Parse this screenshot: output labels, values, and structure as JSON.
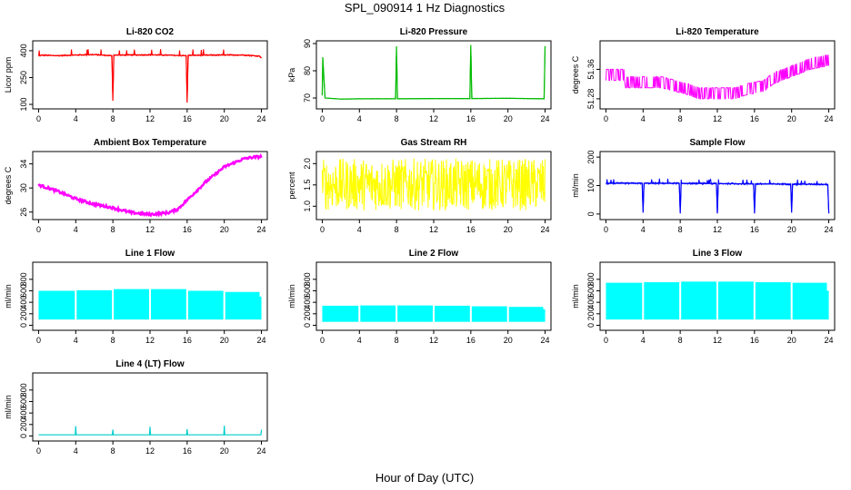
{
  "figure": {
    "title": "SPL_090914  1 Hz Diagnostics",
    "xlabel": "Hour of Day (UTC)"
  },
  "chart_data": [
    {
      "type": "line",
      "title": "Li-820 CO2",
      "ylabel": "Licor ppm",
      "color": "#ff0000",
      "xlim": [
        0,
        24
      ],
      "ylim": [
        90,
        440
      ],
      "x_ticks": [
        0,
        4,
        8,
        12,
        16,
        20,
        24
      ],
      "y_ticks": [
        100,
        250,
        400
      ],
      "series": [
        {
          "x": [
            0,
            0.3,
            2,
            4,
            6,
            7.9,
            8,
            8.1,
            10,
            12,
            14,
            15.9,
            16,
            16.1,
            18,
            20,
            22,
            23.8,
            24
          ],
          "y": [
            370,
            375,
            372,
            376,
            378,
            372,
            120,
            375,
            376,
            377,
            375,
            372,
            110,
            374,
            375,
            376,
            376,
            370,
            360
          ]
        }
      ]
    },
    {
      "type": "line",
      "title": "Li-820 Pressure",
      "ylabel": "kPa",
      "color": "#00bb00",
      "xlim": [
        0,
        24
      ],
      "ylim": [
        67,
        90
      ],
      "x_ticks": [
        0,
        4,
        8,
        12,
        16,
        20,
        24
      ],
      "y_ticks": [
        70,
        80,
        90
      ],
      "series": [
        {
          "x": [
            0,
            0.05,
            0.3,
            2,
            4,
            7.9,
            8,
            8.1,
            12,
            15.9,
            16,
            16.1,
            20,
            23.9,
            24
          ],
          "y": [
            71,
            85,
            70,
            69.6,
            69.7,
            69.7,
            89,
            69.7,
            69.8,
            69.8,
            89.5,
            69.8,
            69.9,
            69.7,
            89
          ]
        }
      ]
    },
    {
      "type": "line",
      "title": "Li-820 Temperature",
      "ylabel": "degrees C",
      "color": "#ff00ff",
      "xlim": [
        0,
        24
      ],
      "ylim": [
        51.26,
        51.43
      ],
      "x_ticks": [
        0,
        4,
        8,
        12,
        16,
        20,
        24
      ],
      "y_ticks": [
        51.28,
        51.36
      ],
      "series": [
        {
          "x": [
            0,
            2,
            2.1,
            6,
            9,
            10,
            12,
            14,
            15,
            17,
            18,
            20,
            22,
            24
          ],
          "y": [
            51.34,
            51.34,
            51.32,
            51.32,
            51.3,
            51.29,
            51.29,
            51.29,
            51.3,
            51.31,
            51.33,
            51.35,
            51.37,
            51.38
          ]
        }
      ]
    },
    {
      "type": "line",
      "title": "Ambient Box Temperature",
      "ylabel": "degrees C",
      "color": "#ff00ff",
      "xlim": [
        0,
        24
      ],
      "ylim": [
        25.2,
        35.6
      ],
      "x_ticks": [
        0,
        4,
        8,
        12,
        16,
        20,
        24
      ],
      "y_ticks": [
        26,
        30,
        34
      ],
      "series": [
        {
          "x": [
            0,
            2,
            4,
            6,
            8,
            10,
            12,
            14,
            15,
            16,
            18,
            20,
            22,
            23,
            24
          ],
          "y": [
            30.5,
            29.5,
            28.2,
            27.3,
            26.7,
            25.9,
            25.6,
            25.9,
            26.5,
            28.0,
            31.0,
            33.5,
            34.8,
            35.1,
            35.2
          ]
        }
      ]
    },
    {
      "type": "line",
      "title": "Gas Stream RH",
      "ylabel": "percent",
      "color": "#ffff00",
      "xlim": [
        0,
        24
      ],
      "ylim": [
        0.75,
        2.22
      ],
      "x_ticks": [
        0,
        4,
        8,
        12,
        16,
        20,
        24
      ],
      "y_ticks": [
        1.0,
        1.5,
        2.0
      ],
      "y_tick_labels": [
        "1.0",
        "1.5",
        "2.0"
      ],
      "series": [
        {
          "x": [
            0,
            24
          ],
          "y": [
            0.9,
            2.15
          ]
        }
      ]
    },
    {
      "type": "line",
      "title": "Sample Flow",
      "ylabel": "ml/min",
      "color": "#0000ff",
      "xlim": [
        0,
        24
      ],
      "ylim": [
        -10,
        210
      ],
      "x_ticks": [
        0,
        4,
        8,
        12,
        16,
        20,
        24
      ],
      "y_ticks": [
        0,
        100,
        200
      ],
      "series": [
        {
          "x": [
            0,
            3.9,
            4,
            4.1,
            7.9,
            8,
            8.1,
            11.9,
            12,
            12.1,
            15.9,
            16,
            16.1,
            19.9,
            20,
            20.1,
            23.9,
            24
          ],
          "y": [
            108,
            108,
            5,
            108,
            108,
            2,
            108,
            107,
            2,
            107,
            106,
            2,
            106,
            105,
            5,
            105,
            104,
            2
          ]
        }
      ]
    },
    {
      "type": "area",
      "title": "Line 1 Flow",
      "ylabel": "ml/min",
      "color": "#00ffff",
      "xlim": [
        0,
        24
      ],
      "ylim": [
        -40,
        1050
      ],
      "x_ticks": [
        0,
        4,
        8,
        12,
        16,
        20,
        24
      ],
      "y_ticks": [
        0,
        200,
        400,
        600,
        800
      ],
      "band_low": 100,
      "segments": [
        [
          0,
          3.9,
          600
        ],
        [
          4.1,
          7.9,
          610
        ],
        [
          8.1,
          11.9,
          630
        ],
        [
          12.1,
          15.9,
          630
        ],
        [
          16.1,
          19.9,
          600
        ],
        [
          20.1,
          23.8,
          580
        ]
      ],
      "tail": [
        23.8,
        24,
        500
      ]
    },
    {
      "type": "area",
      "title": "Line 2 Flow",
      "ylabel": "ml/min",
      "color": "#00ffff",
      "xlim": [
        0,
        24
      ],
      "ylim": [
        -40,
        1050
      ],
      "x_ticks": [
        0,
        4,
        8,
        12,
        16,
        20,
        24
      ],
      "y_ticks": [
        0,
        200,
        400,
        600,
        800
      ],
      "band_low": 60,
      "segments": [
        [
          0,
          3.9,
          340
        ],
        [
          4.1,
          7.9,
          345
        ],
        [
          8.1,
          11.9,
          345
        ],
        [
          12.1,
          15.9,
          340
        ],
        [
          16.1,
          19.9,
          330
        ],
        [
          20.1,
          23.8,
          320
        ]
      ],
      "tail": [
        23.8,
        24,
        280
      ]
    },
    {
      "type": "area",
      "title": "Line 3 Flow",
      "ylabel": "ml/min",
      "color": "#00ffff",
      "xlim": [
        0,
        24
      ],
      "ylim": [
        -40,
        1050
      ],
      "x_ticks": [
        0,
        4,
        8,
        12,
        16,
        20,
        24
      ],
      "y_ticks": [
        0,
        200,
        400,
        600,
        800
      ],
      "band_low": 100,
      "segments": [
        [
          0,
          3.9,
          740
        ],
        [
          4.1,
          7.9,
          750
        ],
        [
          8.1,
          11.9,
          760
        ],
        [
          12.1,
          15.9,
          760
        ],
        [
          16.1,
          19.9,
          750
        ],
        [
          20.1,
          23.8,
          740
        ]
      ],
      "tail": [
        23.8,
        24,
        600
      ]
    },
    {
      "type": "line",
      "title": "Line 4 (LT) Flow",
      "ylabel": "ml/min",
      "color": "#00cccc",
      "xlim": [
        0,
        24
      ],
      "ylim": [
        -40,
        1050
      ],
      "x_ticks": [
        0,
        4,
        8,
        12,
        16,
        20,
        24
      ],
      "y_ticks": [
        0,
        200,
        400,
        600,
        800
      ],
      "series": [
        {
          "x": [
            0,
            3.95,
            4,
            4.05,
            7.95,
            8,
            8.05,
            11.95,
            12,
            12.05,
            15.95,
            16,
            16.05,
            19.95,
            20,
            20.05,
            23.95,
            24
          ],
          "y": [
            20,
            20,
            170,
            20,
            20,
            110,
            20,
            20,
            160,
            20,
            20,
            120,
            20,
            20,
            180,
            20,
            20,
            110
          ]
        }
      ]
    }
  ]
}
